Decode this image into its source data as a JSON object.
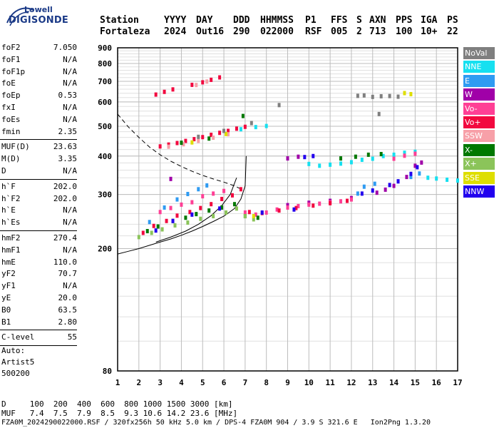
{
  "logo": {
    "top": "Lowell",
    "bottom": "DIGISONDE"
  },
  "header": {
    "labels": [
      "Station",
      "YYYY",
      "DAY",
      "DDD",
      "HHMMSS",
      "P1",
      "FFS",
      "S",
      "AXN",
      "PPS",
      "IGA",
      "PS"
    ],
    "values": [
      "Fortaleza",
      "2024",
      "Out16",
      "290",
      "022000",
      "RSF",
      "005",
      "2",
      "713",
      "100",
      "10+",
      "22"
    ]
  },
  "params": [
    {
      "k": "foF2",
      "v": "7.050"
    },
    {
      "k": "foF1",
      "v": "N/A"
    },
    {
      "k": "foF1p",
      "v": "N/A"
    },
    {
      "k": "foE",
      "v": "N/A"
    },
    {
      "k": "foEp",
      "v": "0.53"
    },
    {
      "k": "fxI",
      "v": "N/A"
    },
    {
      "k": "foEs",
      "v": "N/A"
    },
    {
      "k": "fmin",
      "v": "2.35"
    },
    {
      "k": "MUF(D)",
      "v": "23.63"
    },
    {
      "k": "M(D)",
      "v": "3.35"
    },
    {
      "k": "D",
      "v": "N/A"
    },
    {
      "k": "h`F",
      "v": "202.0"
    },
    {
      "k": "h`F2",
      "v": "202.0"
    },
    {
      "k": "h`E",
      "v": "N/A"
    },
    {
      "k": "h`Es",
      "v": "N/A"
    },
    {
      "k": "hmF2",
      "v": "270.4"
    },
    {
      "k": "hmF1",
      "v": "N/A"
    },
    {
      "k": "hmE",
      "v": "110.0"
    },
    {
      "k": "yF2",
      "v": "70.7"
    },
    {
      "k": "yF1",
      "v": "N/A"
    },
    {
      "k": "yE",
      "v": "20.0"
    },
    {
      "k": "B0",
      "v": "63.5"
    },
    {
      "k": "B1",
      "v": "2.80"
    },
    {
      "k": "C-level",
      "v": "55"
    }
  ],
  "auto": {
    "label": "Auto:",
    "artist": "Artist5",
    "version": "500200"
  },
  "legend": [
    {
      "label": "NoVal",
      "color": "#7f7f7f"
    },
    {
      "label": "NNE",
      "color": "#17e0f0"
    },
    {
      "label": "E",
      "color": "#2f9bf2"
    },
    {
      "label": "W",
      "color": "#a000a8"
    },
    {
      "label": "Vo-",
      "color": "#ff3f95"
    },
    {
      "label": "Vo+",
      "color": "#f2083f"
    },
    {
      "label": "SSW",
      "color": "#f7a0a8"
    },
    {
      "label": "X-",
      "color": "#007800"
    },
    {
      "label": "X+",
      "color": "#8bc45a"
    },
    {
      "label": "SSE",
      "color": "#dede00"
    },
    {
      "label": "NNW",
      "color": "#2200ee"
    }
  ],
  "footer": {
    "d_row": "D     100  200  400  600  800 1000 1500 3000 [km]",
    "muf_row": "MUF   7.4  7.5  7.9  8.5  9.3 10.6 14.2 23.6 [MHz]",
    "file_row": "FZA0M_2024290022000.RSF / 320fx256h 50 kHz 5.0 km / DPS-4 FZA0M 904 / 3.9 S 321.6 E   Ion2Png 1.3.20"
  },
  "chart_data": {
    "type": "scatter",
    "xlim": [
      1,
      17
    ],
    "ylim": [
      80,
      900
    ],
    "x_ticks": [
      1,
      2,
      3,
      4,
      5,
      6,
      7,
      8,
      9,
      10,
      11,
      12,
      13,
      14,
      15,
      16,
      17
    ],
    "y_ticks": [
      80,
      200,
      300,
      400,
      500,
      600,
      700,
      800,
      900
    ],
    "y_scale": "log",
    "grid": true,
    "legend_position": "right",
    "series": [
      {
        "name": "NNE",
        "points": [
          [
            10.0,
            377
          ],
          [
            10.5,
            372
          ],
          [
            11.0,
            375
          ],
          [
            11.5,
            378
          ],
          [
            12.0,
            382
          ],
          [
            12.5,
            389
          ],
          [
            13.0,
            392
          ],
          [
            13.5,
            400
          ],
          [
            14.0,
            404
          ],
          [
            14.5,
            410
          ],
          [
            15.0,
            413
          ],
          [
            15.6,
            340
          ],
          [
            16.0,
            338
          ],
          [
            16.5,
            335
          ],
          [
            17.0,
            333
          ],
          [
            6.8,
            489
          ],
          [
            7.5,
            497
          ],
          [
            8.0,
            501
          ]
        ]
      },
      {
        "name": "E",
        "points": [
          [
            2.5,
            244
          ],
          [
            3.2,
            272
          ],
          [
            3.8,
            289
          ],
          [
            4.3,
            301
          ],
          [
            4.8,
            312
          ],
          [
            5.2,
            321
          ],
          [
            12.3,
            302
          ],
          [
            12.6,
            318
          ],
          [
            13.1,
            325
          ],
          [
            14.2,
            331
          ],
          [
            14.8,
            342
          ],
          [
            15.2,
            351
          ]
        ]
      },
      {
        "name": "W",
        "points": [
          [
            9.0,
            277
          ],
          [
            10.0,
            282
          ],
          [
            11.0,
            286
          ],
          [
            12.0,
            292
          ],
          [
            13.2,
            304
          ],
          [
            13.6,
            311
          ],
          [
            14.0,
            320
          ],
          [
            14.6,
            342
          ],
          [
            15.0,
            372
          ],
          [
            15.3,
            381
          ],
          [
            3.5,
            337
          ],
          [
            9.0,
            393
          ],
          [
            9.5,
            398
          ]
        ]
      },
      {
        "name": "Vo-",
        "points": [
          [
            3.0,
            263
          ],
          [
            3.5,
            271
          ],
          [
            4.0,
            278
          ],
          [
            4.5,
            283
          ],
          [
            5.0,
            296
          ],
          [
            5.5,
            302
          ],
          [
            6.0,
            308
          ],
          [
            7.0,
            262
          ],
          [
            7.5,
            258
          ],
          [
            8.0,
            262
          ],
          [
            8.5,
            268
          ],
          [
            9.0,
            272
          ],
          [
            9.5,
            275
          ],
          [
            10.0,
            278
          ],
          [
            10.5,
            280
          ],
          [
            11.0,
            283
          ],
          [
            11.5,
            285
          ],
          [
            12.0,
            289
          ],
          [
            14.0,
            392
          ],
          [
            14.5,
            401
          ],
          [
            15.0,
            407
          ]
        ]
      },
      {
        "name": "Vo+",
        "points": [
          [
            2.2,
            225
          ],
          [
            2.7,
            237
          ],
          [
            3.3,
            246
          ],
          [
            3.8,
            256
          ],
          [
            4.4,
            263
          ],
          [
            4.9,
            271
          ],
          [
            5.4,
            279
          ],
          [
            5.9,
            290
          ],
          [
            6.4,
            298
          ],
          [
            6.8,
            312
          ],
          [
            7.2,
            263
          ],
          [
            7.8,
            261
          ],
          [
            8.6,
            266
          ],
          [
            9.4,
            271
          ],
          [
            10.2,
            276
          ],
          [
            11.0,
            281
          ],
          [
            11.8,
            286
          ],
          [
            3.0,
            430
          ],
          [
            3.4,
            436
          ],
          [
            3.8,
            441
          ],
          [
            4.2,
            448
          ],
          [
            4.6,
            454
          ],
          [
            5.0,
            461
          ],
          [
            5.4,
            469
          ],
          [
            5.8,
            476
          ],
          [
            6.2,
            483
          ],
          [
            6.6,
            491
          ],
          [
            7.0,
            498
          ],
          [
            2.8,
            634
          ],
          [
            3.2,
            647
          ],
          [
            3.6,
            659
          ],
          [
            4.5,
            682
          ],
          [
            5.0,
            695
          ],
          [
            5.4,
            708
          ],
          [
            5.8,
            721
          ]
        ]
      },
      {
        "name": "SSW",
        "points": [
          [
            3.4,
            429
          ],
          [
            4.1,
            437
          ],
          [
            4.8,
            448
          ],
          [
            5.5,
            459
          ],
          [
            6.2,
            471
          ],
          [
            4.7,
            681
          ],
          [
            5.2,
            699
          ]
        ]
      },
      {
        "name": "X-",
        "points": [
          [
            2.4,
            228
          ],
          [
            2.9,
            236
          ],
          [
            3.6,
            246
          ],
          [
            4.2,
            252
          ],
          [
            4.7,
            259
          ],
          [
            5.3,
            266
          ],
          [
            5.9,
            272
          ],
          [
            6.5,
            279
          ],
          [
            7.0,
            255
          ],
          [
            7.6,
            252
          ],
          [
            11.5,
            393
          ],
          [
            12.2,
            398
          ],
          [
            12.8,
            404
          ],
          [
            13.4,
            406
          ],
          [
            6.9,
            540
          ],
          [
            4.0,
            442
          ],
          [
            5.3,
            456
          ]
        ]
      },
      {
        "name": "X+",
        "points": [
          [
            2.0,
            218
          ],
          [
            2.6,
            225
          ],
          [
            3.1,
            231
          ],
          [
            3.7,
            238
          ],
          [
            4.3,
            243
          ],
          [
            4.9,
            250
          ],
          [
            5.5,
            255
          ],
          [
            6.1,
            262
          ],
          [
            6.6,
            270
          ],
          [
            7.0,
            255
          ],
          [
            7.4,
            249
          ]
        ]
      },
      {
        "name": "SSE",
        "points": [
          [
            14.5,
            641
          ],
          [
            14.8,
            636
          ],
          [
            6.1,
            472
          ],
          [
            4.5,
            443
          ],
          [
            7.4,
            255
          ]
        ]
      },
      {
        "name": "NNW",
        "points": [
          [
            2.8,
            229
          ],
          [
            3.6,
            246
          ],
          [
            4.5,
            258
          ],
          [
            5.8,
            270
          ],
          [
            7.8,
            262
          ],
          [
            9.3,
            268
          ],
          [
            9.8,
            397
          ],
          [
            10.2,
            400
          ],
          [
            12.5,
            302
          ],
          [
            13.0,
            309
          ],
          [
            13.8,
            322
          ],
          [
            14.2,
            331
          ],
          [
            14.8,
            350
          ],
          [
            15.1,
            368
          ]
        ]
      },
      {
        "name": "NoVal",
        "points": [
          [
            12.3,
            628
          ],
          [
            12.6,
            630
          ],
          [
            13.0,
            623
          ],
          [
            13.4,
            626
          ],
          [
            13.8,
            627
          ],
          [
            14.2,
            624
          ],
          [
            13.3,
            548
          ],
          [
            8.6,
            586
          ],
          [
            4.8,
            462
          ],
          [
            6.0,
            483
          ],
          [
            7.3,
            512
          ]
        ]
      }
    ],
    "curves": [
      {
        "style": "dashed",
        "points": [
          [
            1.0,
            548
          ],
          [
            1.5,
            498
          ],
          [
            2.0,
            460
          ],
          [
            2.5,
            428
          ],
          [
            3.0,
            404
          ],
          [
            3.5,
            385
          ],
          [
            4.0,
            370
          ],
          [
            4.5,
            357
          ],
          [
            5.0,
            346
          ],
          [
            5.5,
            337
          ],
          [
            6.0,
            329
          ],
          [
            6.5,
            320
          ],
          [
            6.9,
            310
          ]
        ]
      },
      {
        "style": "solid",
        "points": [
          [
            1.0,
            192
          ],
          [
            1.5,
            196
          ],
          [
            2.0,
            200
          ],
          [
            2.5,
            205
          ],
          [
            3.0,
            210
          ],
          [
            3.5,
            215
          ],
          [
            4.0,
            221
          ],
          [
            4.5,
            228
          ],
          [
            5.0,
            236
          ],
          [
            5.5,
            245
          ],
          [
            6.0,
            255
          ],
          [
            6.5,
            270
          ],
          [
            6.8,
            290
          ],
          [
            7.0,
            320
          ],
          [
            7.05,
            400
          ]
        ]
      },
      {
        "style": "solid",
        "points": [
          [
            2.8,
            210
          ],
          [
            3.5,
            218
          ],
          [
            4.2,
            228
          ],
          [
            4.8,
            240
          ],
          [
            5.4,
            256
          ],
          [
            5.9,
            276
          ],
          [
            6.3,
            300
          ],
          [
            6.6,
            340
          ]
        ]
      }
    ]
  }
}
